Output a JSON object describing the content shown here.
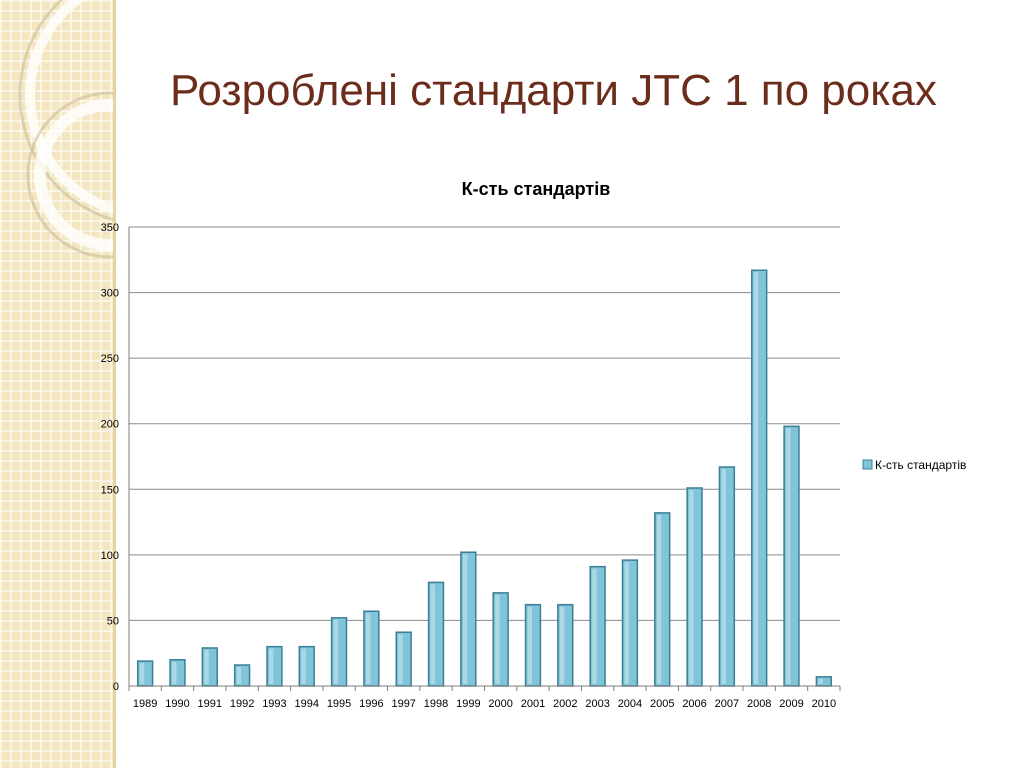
{
  "slide": {
    "title": "Розроблені стандарти JTC 1 по роках"
  },
  "colors": {
    "title": "#6b2c1c",
    "bar_fill": "#7fc4d8",
    "bar_stroke": "#3b7f96",
    "grid": "#8c8c8c",
    "sidebar": "#f4e6c0"
  },
  "chart_data": {
    "type": "bar",
    "title": "К-сть стандартів",
    "categories": [
      "1989",
      "1990",
      "1991",
      "1992",
      "1993",
      "1994",
      "1995",
      "1996",
      "1997",
      "1998",
      "1999",
      "2000",
      "2001",
      "2002",
      "2003",
      "2004",
      "2005",
      "2006",
      "2007",
      "2008",
      "2009",
      "2010"
    ],
    "series": [
      {
        "name": "К-сть стандартів",
        "values": [
          19,
          20,
          29,
          16,
          30,
          30,
          52,
          57,
          41,
          79,
          102,
          71,
          62,
          62,
          91,
          96,
          132,
          151,
          167,
          317,
          198,
          7
        ]
      }
    ],
    "ylim": [
      0,
      350
    ],
    "yticks": [
      0,
      50,
      100,
      150,
      200,
      250,
      300,
      350
    ],
    "grid": true,
    "legend_position": "right"
  }
}
